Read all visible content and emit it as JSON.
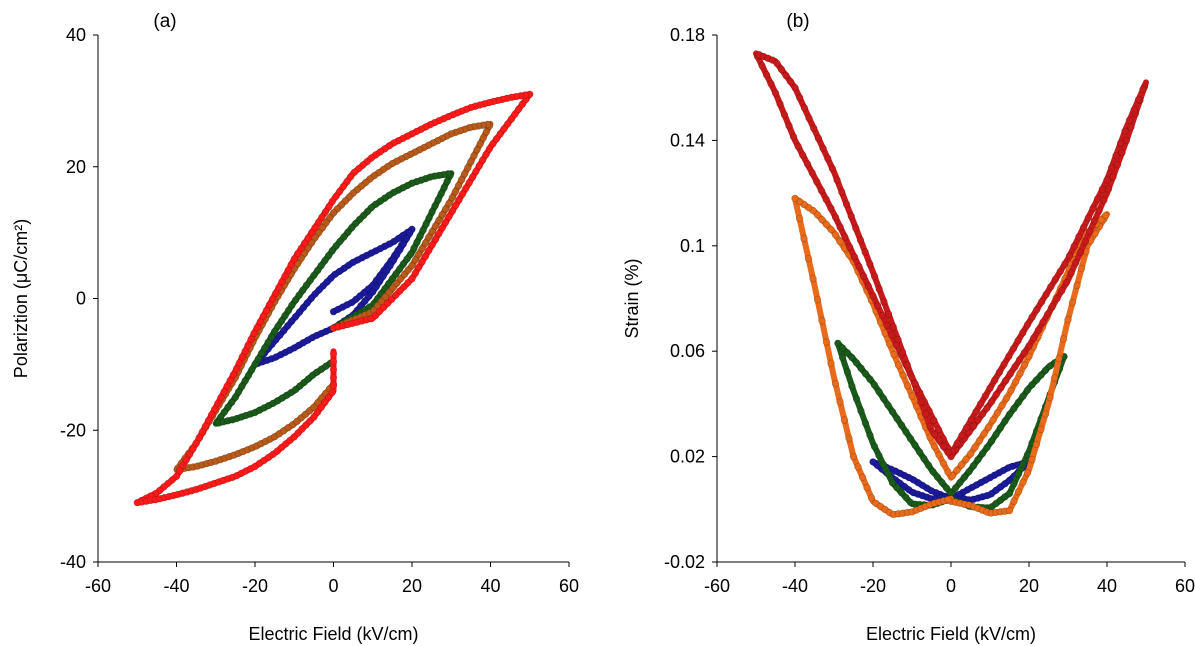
{
  "chart_data": [
    {
      "type": "scatter",
      "panel_label": "(a)",
      "xlabel": "Electric Field (kV/cm)",
      "ylabel": "Polariztion (μC/cm²)",
      "xlim": [
        -60,
        60
      ],
      "ylim": [
        -40,
        40
      ],
      "xticks": [
        "-60",
        "-40",
        "-20",
        "0",
        "20",
        "40",
        "60"
      ],
      "yticks": [
        "-40",
        "-20",
        "0",
        "20",
        "40"
      ],
      "grid": false,
      "series": [
        {
          "color": "#1a1a9a",
          "emax": 20,
          "x": [
            0,
            5,
            10,
            15,
            20,
            15,
            10,
            5,
            0,
            -5,
            -10,
            -15,
            -20,
            -15,
            -10,
            -5,
            0,
            5,
            10,
            15,
            20
          ],
          "y": [
            -2,
            -0.5,
            2,
            6,
            10.5,
            8.5,
            7,
            5.5,
            3.5,
            0.5,
            -3,
            -6.5,
            -10,
            -9,
            -7.5,
            -5.8,
            -4.5,
            -2.5,
            1,
            5.5,
            10.5
          ]
        },
        {
          "color": "#1a5a1a",
          "emax": 30,
          "x": [
            0,
            10,
            20,
            30,
            25,
            20,
            15,
            10,
            5,
            0,
            -5,
            -10,
            -15,
            -20,
            -25,
            -30,
            -25,
            -20,
            -15,
            -10,
            -5,
            0
          ],
          "y": [
            -4.5,
            -1,
            7,
            19,
            18.5,
            17.5,
            16,
            14,
            11,
            7.5,
            3.5,
            -0.5,
            -5,
            -10,
            -15,
            -19,
            -18.3,
            -17.3,
            -15.8,
            -14,
            -11.5,
            -9.5
          ]
        },
        {
          "color": "#b85a1a",
          "emax": 40,
          "x": [
            0,
            10,
            20,
            30,
            40,
            35,
            30,
            25,
            20,
            15,
            10,
            5,
            0,
            -5,
            -10,
            -15,
            -20,
            -25,
            -30,
            -35,
            -40,
            -35,
            -30,
            -25,
            -20,
            -15,
            -10,
            -5,
            0
          ],
          "y": [
            -4.5,
            -2,
            5,
            15,
            26.5,
            26,
            25,
            23.5,
            22,
            20.5,
            18.5,
            16,
            13,
            9,
            4.5,
            -0.5,
            -6,
            -12,
            -17,
            -22,
            -26,
            -25.5,
            -24.7,
            -23.7,
            -22.5,
            -21,
            -19,
            -16.5,
            -13
          ]
        },
        {
          "color": "#ff1a1a",
          "emax": 50,
          "x": [
            0,
            10,
            20,
            30,
            40,
            50,
            45,
            40,
            35,
            30,
            25,
            20,
            15,
            10,
            5,
            0,
            -5,
            -10,
            -15,
            -20,
            -25,
            -30,
            -35,
            -40,
            -45,
            -50,
            -45,
            -40,
            -35,
            -30,
            -25,
            -20,
            -15,
            -10,
            -5,
            0,
            0
          ],
          "y": [
            -4.5,
            -3,
            3,
            13,
            23,
            31,
            30.5,
            29.8,
            29,
            27.8,
            26.5,
            25,
            23.5,
            21.5,
            19,
            15,
            10.5,
            6,
            0.5,
            -5,
            -11,
            -16.5,
            -22,
            -27,
            -29.5,
            -31,
            -30.5,
            -29.8,
            -29,
            -28,
            -27,
            -25.5,
            -23.5,
            -21,
            -18,
            -14,
            -8
          ]
        }
      ]
    },
    {
      "type": "scatter",
      "panel_label": "(b)",
      "xlabel": "Electric Field (kV/cm)",
      "ylabel": "Strain (%)",
      "xlim": [
        -60,
        60
      ],
      "ylim": [
        -0.02,
        0.18
      ],
      "xticks": [
        "-60",
        "-40",
        "-20",
        "0",
        "20",
        "40",
        "60"
      ],
      "yticks": [
        "-0.02",
        "0.02",
        "0.06",
        "0.1",
        "0.14",
        "0.18"
      ],
      "grid": false,
      "series": [
        {
          "color": "#1a1a9a",
          "emax": 20,
          "x": [
            0,
            5,
            10,
            15,
            20,
            15,
            10,
            5,
            0,
            -5,
            -10,
            -15,
            -20,
            -15,
            -10,
            -5,
            0
          ],
          "y": [
            0.005,
            0.0035,
            0.0055,
            0.011,
            0.018,
            0.016,
            0.012,
            0.008,
            0.004,
            0.007,
            0.0115,
            0.015,
            0.018,
            0.012,
            0.0065,
            0.004,
            0.005
          ]
        },
        {
          "color": "#1a5a1a",
          "emax": 30,
          "x": [
            0,
            5,
            10,
            15,
            20,
            25,
            29,
            25,
            20,
            15,
            10,
            5,
            0,
            -5,
            -10,
            -15,
            -20,
            -25,
            -29,
            -25,
            -20,
            -15,
            -10,
            -5,
            0
          ],
          "y": [
            0.004,
            0.001,
            0.0005,
            0.006,
            0.022,
            0.042,
            0.058,
            0.054,
            0.046,
            0.036,
            0.025,
            0.015,
            0.006,
            0.015,
            0.026,
            0.037,
            0.048,
            0.057,
            0.063,
            0.045,
            0.025,
            0.01,
            0.002,
            0.0015,
            0.004
          ]
        },
        {
          "color": "#e86a1a",
          "emax": 40,
          "x": [
            0,
            5,
            10,
            15,
            20,
            25,
            30,
            35,
            40,
            35,
            30,
            25,
            20,
            15,
            10,
            5,
            0,
            -5,
            -10,
            -15,
            -20,
            -25,
            -30,
            -35,
            -40,
            -35,
            -30,
            -25,
            -20,
            -15,
            -10,
            -5,
            0
          ],
          "y": [
            0.003,
            0.0015,
            -0.0015,
            -0.0005,
            0.015,
            0.04,
            0.072,
            0.1,
            0.112,
            0.105,
            0.09,
            0.074,
            0.058,
            0.044,
            0.032,
            0.021,
            0.012,
            0.026,
            0.043,
            0.06,
            0.078,
            0.094,
            0.105,
            0.113,
            0.118,
            0.085,
            0.05,
            0.02,
            0.003,
            -0.002,
            -0.001,
            0.002,
            0.004
          ]
        },
        {
          "color": "#c81a1a",
          "emax": 50,
          "x": [
            0,
            5,
            10,
            20,
            30,
            40,
            45,
            50,
            45,
            40,
            30,
            20,
            10,
            0,
            -10,
            -20,
            -30,
            -40,
            -45,
            -50,
            -45,
            -40,
            -30,
            -20,
            -10,
            -5,
            0
          ],
          "y": [
            0.02,
            0.03,
            0.04,
            0.062,
            0.087,
            0.12,
            0.14,
            0.162,
            0.145,
            0.125,
            0.095,
            0.071,
            0.046,
            0.021,
            0.05,
            0.081,
            0.112,
            0.14,
            0.158,
            0.173,
            0.17,
            0.16,
            0.128,
            0.09,
            0.05,
            0.03,
            0.02
          ]
        }
      ]
    }
  ]
}
